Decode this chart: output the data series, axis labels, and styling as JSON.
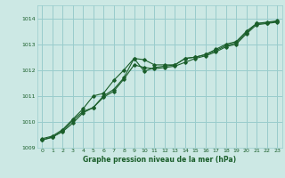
{
  "xlabel": "Graphe pression niveau de la mer (hPa)",
  "ylabel": "",
  "bg_color": "#cce8e4",
  "grid_color": "#99cccc",
  "line_color": "#1a5e2a",
  "xlim": [
    -0.5,
    23.5
  ],
  "ylim": [
    1009.0,
    1014.5
  ],
  "yticks": [
    1009,
    1010,
    1011,
    1012,
    1013,
    1014
  ],
  "xticks": [
    0,
    1,
    2,
    3,
    4,
    5,
    6,
    7,
    8,
    9,
    10,
    11,
    12,
    13,
    14,
    15,
    16,
    17,
    18,
    19,
    20,
    21,
    22,
    23
  ],
  "series1_x": [
    0,
    1,
    2,
    3,
    4,
    5,
    6,
    7,
    8,
    9,
    10,
    11,
    12,
    13,
    14,
    15,
    16,
    17,
    18,
    19,
    20,
    21,
    22,
    23
  ],
  "series1_y": [
    1009.35,
    1009.45,
    1009.7,
    1010.1,
    1010.5,
    1011.0,
    1011.1,
    1011.6,
    1012.0,
    1012.45,
    1011.95,
    1012.1,
    1012.15,
    1012.2,
    1012.45,
    1012.5,
    1012.6,
    1012.8,
    1013.0,
    1013.1,
    1013.5,
    1013.8,
    1013.85,
    1013.9
  ],
  "series2_x": [
    0,
    1,
    2,
    3,
    4,
    5,
    6,
    7,
    8,
    9,
    10,
    11,
    12,
    13,
    14,
    15,
    16,
    17,
    18,
    19,
    20,
    21,
    22,
    23
  ],
  "series2_y": [
    1009.3,
    1009.4,
    1009.65,
    1010.05,
    1010.4,
    1010.55,
    1011.0,
    1011.25,
    1011.7,
    1012.45,
    1012.4,
    1012.2,
    1012.2,
    1012.2,
    1012.45,
    1012.5,
    1012.6,
    1012.75,
    1012.95,
    1013.05,
    1013.45,
    1013.8,
    1013.82,
    1013.88
  ],
  "series3_x": [
    0,
    1,
    2,
    3,
    4,
    5,
    6,
    7,
    8,
    9,
    10,
    11,
    12,
    13,
    14,
    15,
    16,
    17,
    18,
    19,
    20,
    21,
    22,
    23
  ],
  "series3_y": [
    1009.3,
    1009.42,
    1009.62,
    1009.95,
    1010.35,
    1010.55,
    1010.95,
    1011.18,
    1011.65,
    1012.2,
    1012.1,
    1012.05,
    1012.1,
    1012.15,
    1012.3,
    1012.45,
    1012.55,
    1012.7,
    1012.9,
    1013.0,
    1013.4,
    1013.75,
    1013.8,
    1013.85
  ]
}
